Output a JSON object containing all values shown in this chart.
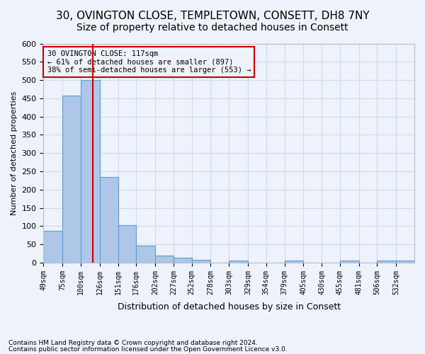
{
  "title1": "30, OVINGTON CLOSE, TEMPLETOWN, CONSETT, DH8 7NY",
  "title2": "Size of property relative to detached houses in Consett",
  "xlabel": "Distribution of detached houses by size in Consett",
  "ylabel": "Number of detached properties",
  "footnote1": "Contains HM Land Registry data © Crown copyright and database right 2024.",
  "footnote2": "Contains public sector information licensed under the Open Government Licence v3.0.",
  "annotation_line1": "30 OVINGTON CLOSE: 117sqm",
  "annotation_line2": "← 61% of detached houses are smaller (897)",
  "annotation_line3": "38% of semi-detached houses are larger (553) →",
  "bar_edges": [
    49,
    75,
    100,
    126,
    151,
    176,
    202,
    227,
    252,
    278,
    303,
    329,
    354,
    379,
    405,
    430,
    455,
    481,
    506,
    532,
    557
  ],
  "bar_heights": [
    88,
    457,
    500,
    235,
    102,
    46,
    20,
    13,
    8,
    0,
    5,
    0,
    0,
    5,
    0,
    0,
    5,
    0,
    5,
    5
  ],
  "bar_color": "#aec6e8",
  "bar_edgecolor": "#5a9fd4",
  "property_size": 117,
  "vline_color": "#cc0000",
  "ylim": [
    0,
    600
  ],
  "yticks": [
    0,
    50,
    100,
    150,
    200,
    250,
    300,
    350,
    400,
    450,
    500,
    550,
    600
  ],
  "annotation_box_color": "#cc0000",
  "bg_color": "#eef2fb",
  "grid_color": "#d0d8ee",
  "title1_fontsize": 11,
  "title2_fontsize": 10
}
